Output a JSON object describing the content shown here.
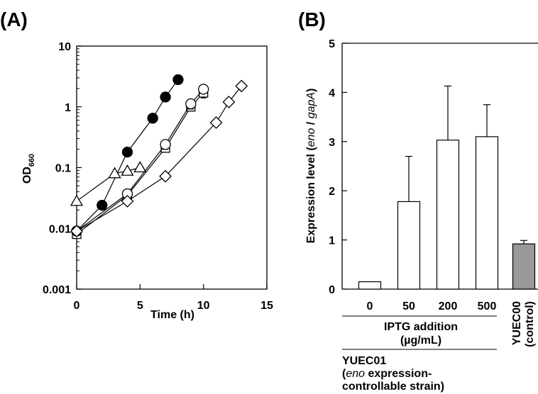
{
  "panels": {
    "a_label": "(A)",
    "b_label": "(B)"
  },
  "chart_data": [
    {
      "type": "scatter",
      "panel": "(A)",
      "xlabel": "Time (h)",
      "ylabel_main": "OD",
      "ylabel_sub": "660",
      "xlim": [
        0,
        15
      ],
      "ylim": [
        0.001,
        10
      ],
      "yscale": "log",
      "xticks": [
        0,
        5,
        10,
        15
      ],
      "xtick_labels": [
        "0",
        "5",
        "10",
        "15"
      ],
      "yticks": [
        0.001,
        0.01,
        0.1,
        1,
        10
      ],
      "ytick_labels": [
        "0.001",
        "0.01",
        "0.1",
        "1",
        "10"
      ],
      "grid": false,
      "series": [
        {
          "marker": "filled-circle",
          "x": [
            0,
            2,
            4,
            6,
            7,
            8
          ],
          "y": [
            0.009,
            0.024,
            0.18,
            0.65,
            1.45,
            2.8
          ]
        },
        {
          "marker": "open-triangle",
          "x": [
            0,
            3,
            4,
            5
          ],
          "y": [
            0.028,
            0.08,
            0.088,
            0.1
          ]
        },
        {
          "marker": "open-square",
          "x": [
            0,
            4,
            7,
            9,
            10
          ],
          "y": [
            0.008,
            0.035,
            0.21,
            1.0,
            1.7
          ],
          "err": [
            0,
            0,
            0,
            0.12,
            0.3
          ]
        },
        {
          "marker": "open-circle",
          "x": [
            0,
            4,
            7,
            9,
            10
          ],
          "y": [
            0.009,
            0.037,
            0.24,
            1.12,
            1.95
          ],
          "err": [
            0,
            0,
            0.04,
            0.2,
            0
          ]
        },
        {
          "marker": "open-diamond",
          "x": [
            0,
            4,
            7,
            11,
            12,
            13
          ],
          "y": [
            0.009,
            0.028,
            0.072,
            0.55,
            1.2,
            2.2
          ]
        }
      ]
    },
    {
      "type": "bar",
      "panel": "(B)",
      "ylabel_parts": [
        "Expression level (",
        "eno",
        " / ",
        "gapA",
        ")"
      ],
      "ylim": [
        0,
        5
      ],
      "yticks": [
        0,
        1,
        2,
        3,
        4,
        5
      ],
      "ytick_labels": [
        "0",
        "1",
        "2",
        "3",
        "4",
        "5"
      ],
      "categories": [
        "0",
        "50",
        "200",
        "500",
        "YUEC00 (control)"
      ],
      "values": [
        0.15,
        1.78,
        3.03,
        3.1,
        0.92
      ],
      "errors": [
        0,
        0.92,
        1.1,
        0.65,
        0.07
      ],
      "colors": [
        "#ffffff",
        "#ffffff",
        "#ffffff",
        "#ffffff",
        "#999999"
      ],
      "control_label_lines": [
        "YUEC00",
        "(control)"
      ],
      "group_label_lines": [
        "IPTG addition",
        "(µg/mL)"
      ],
      "strain_label_title": "YUEC01",
      "strain_label_line2": [
        "(",
        "eno",
        " expression-"
      ],
      "strain_label_line3": "controllable strain)"
    }
  ]
}
